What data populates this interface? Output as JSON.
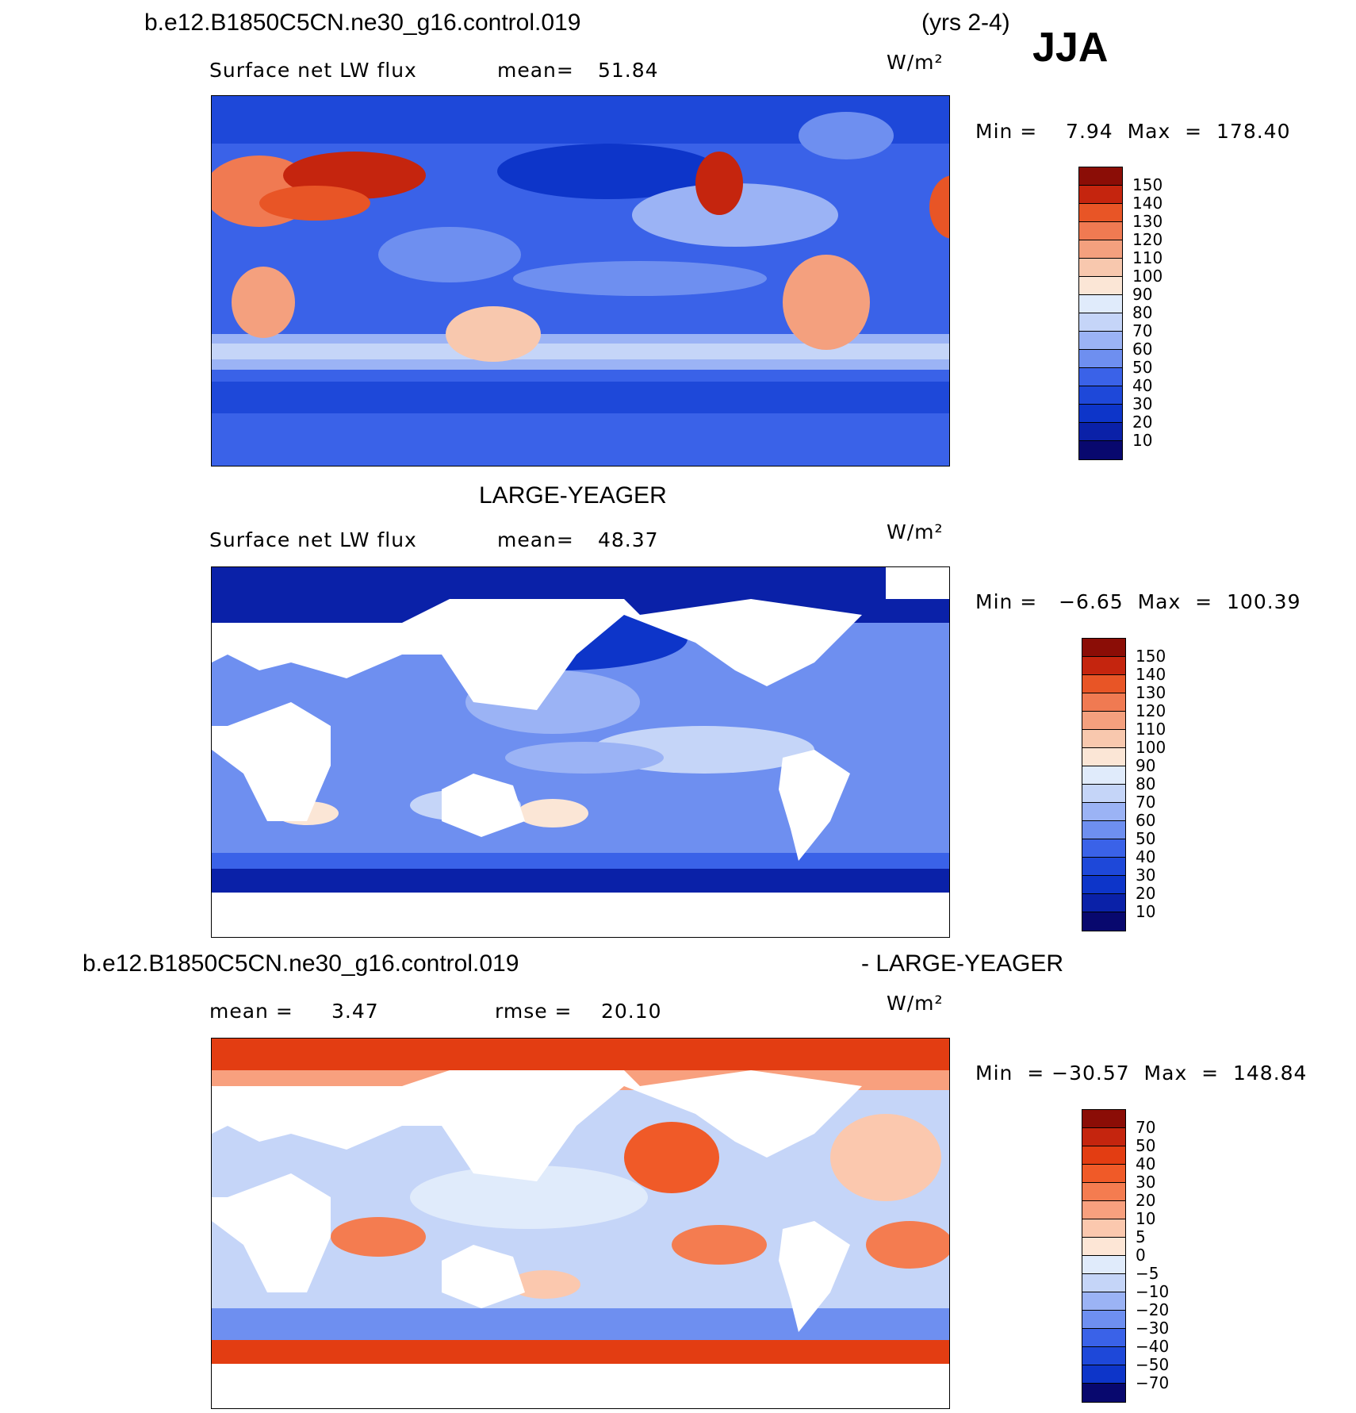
{
  "header": {
    "case_name": "b.e12.B1850C5CN.ne30_g16.control.019",
    "years": "(yrs 2-4)",
    "season": "JJA"
  },
  "panels": [
    {
      "id": "model",
      "title": "",
      "variable": "Surface net LW flux",
      "stat1_label": "mean=",
      "stat1_value": "51.84",
      "stat2_label": "",
      "stat2_value": "",
      "units": "W/m²",
      "minmax": "Min =    7.94  Max  =  178.40"
    },
    {
      "id": "obs",
      "title": "LARGE-YEAGER",
      "variable": "Surface net LW flux",
      "stat1_label": "mean=",
      "stat1_value": "48.37",
      "stat2_label": "",
      "stat2_value": "",
      "units": "W/m²",
      "minmax": "Min =   −6.65  Max  =  100.39"
    },
    {
      "id": "diff",
      "title_left": "b.e12.B1850C5CN.ne30_g16.control.019",
      "title_right": "- LARGE-YEAGER",
      "variable": "",
      "stat1_label": "mean =",
      "stat1_value": "3.47",
      "stat2_label": "rmse =",
      "stat2_value": "20.10",
      "units": "W/m²",
      "minmax": "Min  = −30.57  Max  =  148.84"
    }
  ],
  "chart_data": [
    {
      "type": "heatmap",
      "title": "Surface net LW flux (model)",
      "units": "W/m²",
      "mean": 51.84,
      "min": 7.94,
      "max": 178.4,
      "colorbar_levels": [
        10,
        20,
        30,
        40,
        50,
        60,
        70,
        80,
        90,
        100,
        110,
        120,
        130,
        140,
        150
      ],
      "colors": [
        "#08086e",
        "#0a21a8",
        "#0d35c9",
        "#1e48d9",
        "#3a62e8",
        "#6e8ff0",
        "#9bb3f5",
        "#c5d5f8",
        "#e0ebfb",
        "#fbe6d6",
        "#f8c8ae",
        "#f4a07e",
        "#f07a52",
        "#e85526",
        "#c5250e",
        "#8b0d06"
      ]
    },
    {
      "type": "heatmap",
      "title": "Surface net LW flux (LARGE-YEAGER)",
      "units": "W/m²",
      "mean": 48.37,
      "min": -6.65,
      "max": 100.39,
      "colorbar_levels": [
        10,
        20,
        30,
        40,
        50,
        60,
        70,
        80,
        90,
        100,
        110,
        120,
        130,
        140,
        150
      ],
      "colors": [
        "#08086e",
        "#0a21a8",
        "#0d35c9",
        "#1e48d9",
        "#3a62e8",
        "#6e8ff0",
        "#9bb3f5",
        "#c5d5f8",
        "#e0ebfb",
        "#fbe6d6",
        "#f8c8ae",
        "#f4a07e",
        "#f07a52",
        "#e85526",
        "#c5250e",
        "#8b0d06"
      ]
    },
    {
      "type": "heatmap",
      "title": "b.e12.B1850C5CN.ne30_g16.control.019 - LARGE-YEAGER",
      "units": "W/m²",
      "mean": 3.47,
      "rmse": 20.1,
      "min": -30.57,
      "max": 148.84,
      "colorbar_levels": [
        70,
        50,
        40,
        30,
        20,
        10,
        5,
        0,
        -5,
        -10,
        -20,
        -30,
        -40,
        -50,
        -70
      ],
      "colors": [
        "#8b0d06",
        "#c5250e",
        "#e33d12",
        "#f05a28",
        "#f47c50",
        "#f8a07e",
        "#fbc8ae",
        "#fde6d6",
        "#e0ebfb",
        "#c5d5f8",
        "#9bb3f5",
        "#6e8ff0",
        "#3a62e8",
        "#1e48d9",
        "#0d35c9",
        "#08086e"
      ]
    }
  ]
}
